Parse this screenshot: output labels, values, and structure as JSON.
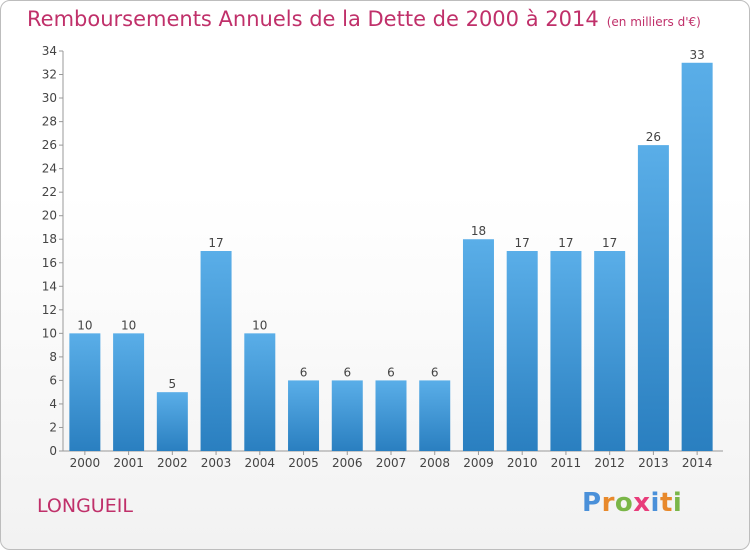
{
  "header": {
    "title": "Remboursements Annuels de la Dette de 2000 à 2014",
    "unit": "(en milliers d'€)"
  },
  "footer": {
    "city": "LONGUEIL",
    "brand_letters": [
      "P",
      "r",
      "o",
      "x",
      "i",
      "t",
      "i"
    ]
  },
  "colors": {
    "accent": "#c0306a",
    "bar_light": "#5aaee8",
    "bar_dark": "#2a7fc0",
    "brand": [
      "#4a90d9",
      "#e8892b",
      "#7ab648",
      "#e83c7a",
      "#4a90d9",
      "#e8892b",
      "#7ab648"
    ]
  },
  "chart_data": {
    "type": "bar",
    "categories": [
      "2000",
      "2001",
      "2002",
      "2003",
      "2004",
      "2005",
      "2006",
      "2007",
      "2008",
      "2009",
      "2010",
      "2011",
      "2012",
      "2013",
      "2014"
    ],
    "values": [
      10,
      10,
      5,
      17,
      10,
      6,
      6,
      6,
      6,
      18,
      17,
      17,
      17,
      26,
      33
    ],
    "data_labels": [
      "10",
      "10",
      "5",
      "17",
      "10",
      "6",
      "6",
      "6",
      "6",
      "18",
      "17",
      "17",
      "17",
      "26",
      "33"
    ],
    "ylim": [
      0,
      34
    ],
    "yticks": [
      0,
      2,
      4,
      6,
      8,
      10,
      12,
      14,
      16,
      18,
      20,
      22,
      24,
      26,
      28,
      30,
      32,
      34
    ],
    "grid": false
  }
}
